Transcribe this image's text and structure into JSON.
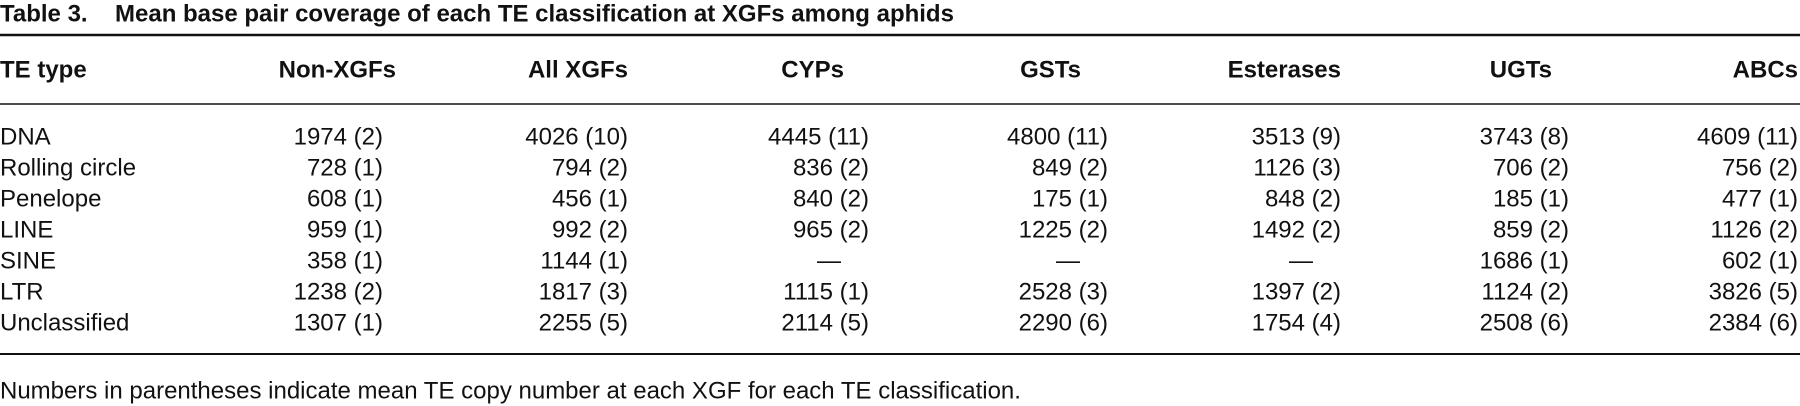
{
  "caption": {
    "label": "Table 3.",
    "title": "Mean base pair coverage of each TE classification at XGFs among aphids"
  },
  "table": {
    "columns": [
      "TE type",
      "Non-XGFs",
      "All XGFs",
      "CYPs",
      "GSTs",
      "Esterases",
      "UGTs",
      "ABCs"
    ],
    "rows": [
      [
        "DNA",
        "1974 (2)",
        "4026 (10)",
        "4445 (11)",
        "4800 (11)",
        "3513 (9)",
        "3743 (8)",
        "4609 (11)"
      ],
      [
        "Rolling circle",
        "728 (1)",
        "794 (2)",
        "836 (2)",
        "849 (2)",
        "1126 (3)",
        "706 (2)",
        "756 (2)"
      ],
      [
        "Penelope",
        "608 (1)",
        "456 (1)",
        "840 (2)",
        "175 (1)",
        "848 (2)",
        "185 (1)",
        "477 (1)"
      ],
      [
        "LINE",
        "959 (1)",
        "992 (2)",
        "965 (2)",
        "1225 (2)",
        "1492 (2)",
        "859 (2)",
        "1126 (2)"
      ],
      [
        "SINE",
        "358 (1)",
        "1144 (1)",
        "—",
        "—",
        "—",
        "1686 (1)",
        "602 (1)"
      ],
      [
        "LTR",
        "1238 (2)",
        "1817 (3)",
        "1115 (1)",
        "2528 (3)",
        "1397 (2)",
        "1124 (2)",
        "3826 (5)"
      ],
      [
        "Unclassified",
        "1307 (1)",
        "2255 (5)",
        "2114 (5)",
        "2290 (6)",
        "1754 (4)",
        "2508 (6)",
        "2384 (6)"
      ]
    ]
  },
  "footnote": "Numbers in parentheses indicate mean TE copy number at each XGF for each TE classification."
}
